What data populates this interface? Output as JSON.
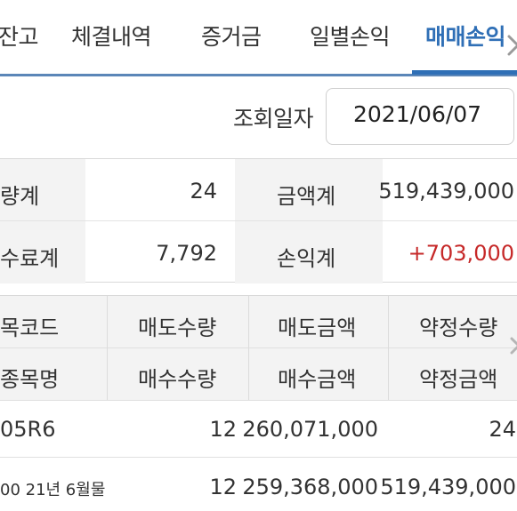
{
  "tabs": [
    {
      "label": "잔고"
    },
    {
      "label": "체결내역"
    },
    {
      "label": "증거금"
    },
    {
      "label": "일별손익"
    },
    {
      "label": "매매손익",
      "active": true
    }
  ],
  "query": {
    "date_label": "조회일자",
    "date_value": "2021/06/07"
  },
  "summary": {
    "qty_label": "량계",
    "qty_value": "24",
    "amount_label": "금액계",
    "amount_value": "519,439,000",
    "fee_label": "수료계",
    "fee_value": "7,792",
    "pnl_label": "손익계",
    "pnl_value": "+703,000",
    "pnl_color": "#c62828"
  },
  "detail": {
    "headers_row1": [
      "목코드",
      "매도수량",
      "매도금액",
      "약정수량"
    ],
    "headers_row2": [
      "종목명",
      "매수수량",
      "매수금액",
      "약정금액"
    ],
    "rows": [
      {
        "col1": "05R6",
        "col2": "12",
        "col3": "260,071,000",
        "col4": "24"
      },
      {
        "col1": "00 21년 6월물",
        "col2": "12",
        "col3": "259,368,000",
        "col4": "519,439,000"
      }
    ]
  },
  "colors": {
    "accent": "#2f6fb6",
    "header_bg": "#f3f3f3"
  }
}
